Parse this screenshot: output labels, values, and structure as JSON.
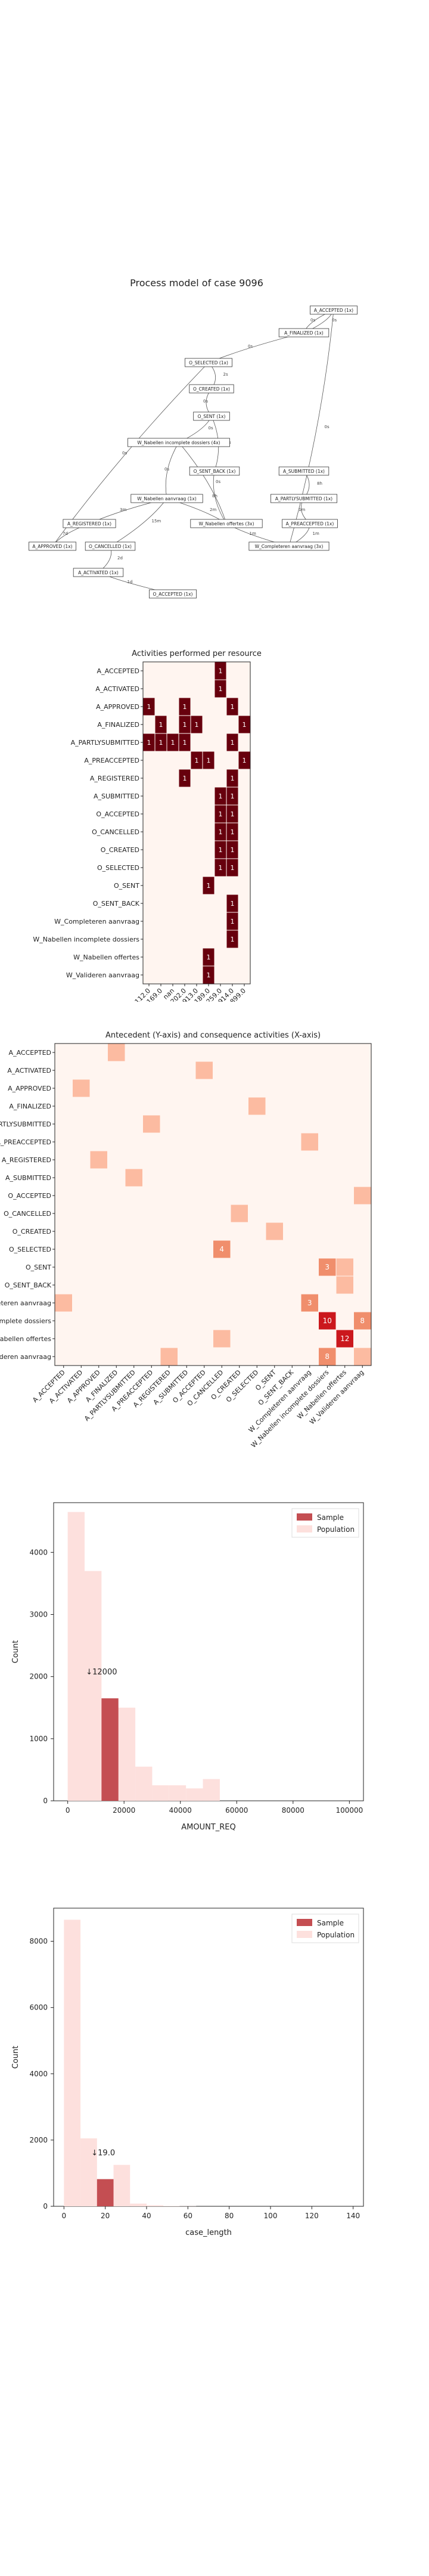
{
  "colors": {
    "cell_dark": "#67000d",
    "cell_mid": "#cb181d",
    "cell_light": "#fcbba1",
    "cell_bg": "#fff5f0",
    "sample_bar": "#c44e52",
    "population_bar": "#fde0dd"
  },
  "process_model": {
    "title": "Process model of case 9096",
    "nodes": [
      {
        "id": "A_ACCEPTED",
        "label": "A_ACCEPTED (1x)"
      },
      {
        "id": "A_FINALIZED",
        "label": "A_FINALIZED (1x)"
      },
      {
        "id": "O_SELECTED",
        "label": "O_SELECTED (1x)"
      },
      {
        "id": "O_CREATED",
        "label": "O_CREATED (1x)"
      },
      {
        "id": "O_SENT",
        "label": "O_SENT (1x)"
      },
      {
        "id": "W_Nabellen_incomplete",
        "label": "W_Nabellen incomplete dossiers (4x)"
      },
      {
        "id": "O_SENT_BACK",
        "label": "O_SENT_BACK (1x)"
      },
      {
        "id": "A_SUBMITTED",
        "label": "A_SUBMITTED (1x)"
      },
      {
        "id": "A_PARTLYSUBMITTED",
        "label": "A_PARTLYSUBMITTED (1x)"
      },
      {
        "id": "W_Nabellen_aanvraag",
        "label": "W_Nabellen aanvraag (1x)"
      },
      {
        "id": "A_REGISTERED",
        "label": "A_REGISTERED (1x)"
      },
      {
        "id": "W_Nabellen_offertes",
        "label": "W_Nabellen offertes (3x)"
      },
      {
        "id": "A_PREACCEPTED",
        "label": "A_PREACCEPTED (1x)"
      },
      {
        "id": "A_APPROVED",
        "label": "A_APPROVED (1x)"
      },
      {
        "id": "O_CANCELLED",
        "label": "O_CANCELLED (1x)"
      },
      {
        "id": "W_Completeren",
        "label": "W_Completeren aanvraag (3x)"
      },
      {
        "id": "A_ACTIVATED",
        "label": "A_ACTIVATED (1x)"
      },
      {
        "id": "O_ACCEPTED",
        "label": "O_ACCEPTED (1x)"
      }
    ],
    "edge_labels": [
      "0s",
      "0s",
      "0s",
      "2s",
      "0s",
      "0s",
      "0s",
      "0s",
      "8h",
      "8h",
      "1m",
      "1m",
      "1m",
      "2m",
      "3m",
      "15m",
      "7d",
      "2d",
      "1d",
      "0s",
      "0s",
      "0s"
    ]
  },
  "chart_data": [
    {
      "type": "heatmap",
      "title": "Activities performed per resource",
      "rows": [
        "A_ACCEPTED",
        "A_ACTIVATED",
        "A_APPROVED",
        "A_FINALIZED",
        "A_PARTLYSUBMITTED",
        "A_PREACCEPTED",
        "A_REGISTERED",
        "A_SUBMITTED",
        "O_ACCEPTED",
        "O_CANCELLED",
        "O_CREATED",
        "O_SELECTED",
        "O_SENT",
        "O_SENT_BACK",
        "W_Completeren aanvraag",
        "W_Nabellen incomplete dossiers",
        "W_Nabellen offertes",
        "W_Valideren aanvraag"
      ],
      "columns": [
        "112.0",
        "11169.0",
        "nan",
        "11202.0",
        "10913.0",
        "11189.0",
        "11259.0",
        "10914.0",
        "10899.0"
      ],
      "cells": [
        [
          0,
          6,
          1
        ],
        [
          1,
          6,
          1
        ],
        [
          2,
          0,
          1
        ],
        [
          2,
          3,
          1
        ],
        [
          2,
          7,
          1
        ],
        [
          3,
          1,
          1
        ],
        [
          3,
          3,
          1
        ],
        [
          3,
          4,
          1
        ],
        [
          3,
          8,
          1
        ],
        [
          4,
          0,
          1
        ],
        [
          4,
          1,
          1
        ],
        [
          4,
          2,
          1
        ],
        [
          4,
          3,
          1
        ],
        [
          4,
          7,
          1
        ],
        [
          5,
          4,
          1
        ],
        [
          5,
          5,
          1
        ],
        [
          5,
          8,
          1
        ],
        [
          6,
          3,
          1
        ],
        [
          6,
          7,
          1
        ],
        [
          7,
          6,
          1
        ],
        [
          7,
          7,
          1
        ],
        [
          8,
          6,
          1
        ],
        [
          8,
          7,
          1
        ],
        [
          9,
          6,
          1
        ],
        [
          9,
          7,
          1
        ],
        [
          10,
          6,
          1
        ],
        [
          10,
          7,
          1
        ],
        [
          11,
          6,
          1
        ],
        [
          11,
          7,
          1
        ],
        [
          12,
          5,
          1
        ],
        [
          13,
          7,
          1
        ],
        [
          14,
          7,
          1
        ],
        [
          15,
          7,
          1
        ],
        [
          16,
          5,
          1
        ],
        [
          17,
          5,
          1
        ]
      ]
    },
    {
      "type": "heatmap",
      "title": "Antecedent (Y-axis) and consequence activities (X-axis)",
      "rows": [
        "A_ACCEPTED",
        "A_ACTIVATED",
        "A_APPROVED",
        "A_FINALIZED",
        "A_PARTLYSUBMITTED",
        "A_PREACCEPTED",
        "A_REGISTERED",
        "A_SUBMITTED",
        "O_ACCEPTED",
        "O_CANCELLED",
        "O_CREATED",
        "O_SELECTED",
        "O_SENT",
        "O_SENT_BACK",
        "W_Completeren aanvraag",
        "W_Nabellen incomplete dossiers",
        "W_Nabellen offertes",
        "W_Valideren aanvraag"
      ],
      "columns": [
        "A_ACCEPTED",
        "A_ACTIVATED",
        "A_APPROVED",
        "A_FINALIZED",
        "A_PARTLYSUBMITTED",
        "A_PREACCEPTED",
        "A_REGISTERED",
        "A_SUBMITTED",
        "O_ACCEPTED",
        "O_CANCELLED",
        "O_CREATED",
        "O_SELECTED",
        "O_SENT",
        "O_SENT_BACK",
        "W_Completeren aanvraag",
        "W_Nabellen incomplete dossiers",
        "W_Nabellen offertes",
        "W_Valideren aanvraag"
      ],
      "cells": [
        [
          0,
          3,
          1
        ],
        [
          1,
          8,
          1
        ],
        [
          2,
          1,
          1
        ],
        [
          3,
          11,
          1
        ],
        [
          4,
          5,
          1
        ],
        [
          5,
          14,
          1
        ],
        [
          6,
          2,
          1
        ],
        [
          7,
          4,
          1
        ],
        [
          8,
          17,
          1
        ],
        [
          9,
          10,
          1
        ],
        [
          10,
          12,
          1
        ],
        [
          11,
          9,
          4
        ],
        [
          12,
          16,
          1
        ],
        [
          12,
          15,
          3
        ],
        [
          13,
          16,
          1
        ],
        [
          14,
          0,
          1
        ],
        [
          14,
          14,
          3
        ],
        [
          15,
          15,
          10
        ],
        [
          15,
          17,
          8
        ],
        [
          16,
          9,
          1
        ],
        [
          16,
          16,
          12
        ],
        [
          17,
          6,
          1
        ],
        [
          17,
          15,
          8
        ],
        [
          17,
          17,
          1
        ]
      ]
    },
    {
      "type": "bar",
      "xlabel": "AMOUNT_REQ",
      "ylabel": "Count",
      "xlim": [
        -5000,
        105000
      ],
      "ylim": [
        0,
        4800
      ],
      "xticks": [
        0,
        20000,
        40000,
        60000,
        80000,
        100000
      ],
      "yticks": [
        0,
        1000,
        2000,
        3000,
        4000
      ],
      "annotation": "↓12000",
      "annotation_x": 12000,
      "legend": [
        "Sample",
        "Population"
      ],
      "legend_position": "top-right",
      "bin_width": 6000,
      "population": {
        "name": "Population",
        "bin_starts": [
          0,
          6000,
          12000,
          18000,
          24000,
          30000,
          36000,
          42000,
          48000,
          54000
        ],
        "values": [
          4650,
          3700,
          1500,
          1500,
          550,
          250,
          250,
          200,
          350,
          0
        ]
      },
      "sample": {
        "name": "Sample",
        "bin_starts": [
          12000
        ],
        "values": [
          1650
        ]
      }
    },
    {
      "type": "bar",
      "xlabel": "case_length",
      "ylabel": "Count",
      "xlim": [
        -5,
        145
      ],
      "ylim": [
        0,
        9000
      ],
      "xticks": [
        0,
        20,
        40,
        60,
        80,
        100,
        120,
        140
      ],
      "yticks": [
        0,
        2000,
        4000,
        6000,
        8000
      ],
      "annotation": "↓19.0",
      "annotation_x": 19,
      "legend": [
        "Sample",
        "Population"
      ],
      "legend_position": "top-right",
      "bin_width": 8,
      "population": {
        "name": "Population",
        "bin_starts": [
          0,
          8,
          16,
          24,
          32,
          40,
          48,
          56
        ],
        "values": [
          8650,
          2050,
          800,
          1250,
          80,
          30,
          10,
          5
        ]
      },
      "sample": {
        "name": "Sample",
        "bin_starts": [
          16
        ],
        "values": [
          820
        ]
      }
    }
  ]
}
